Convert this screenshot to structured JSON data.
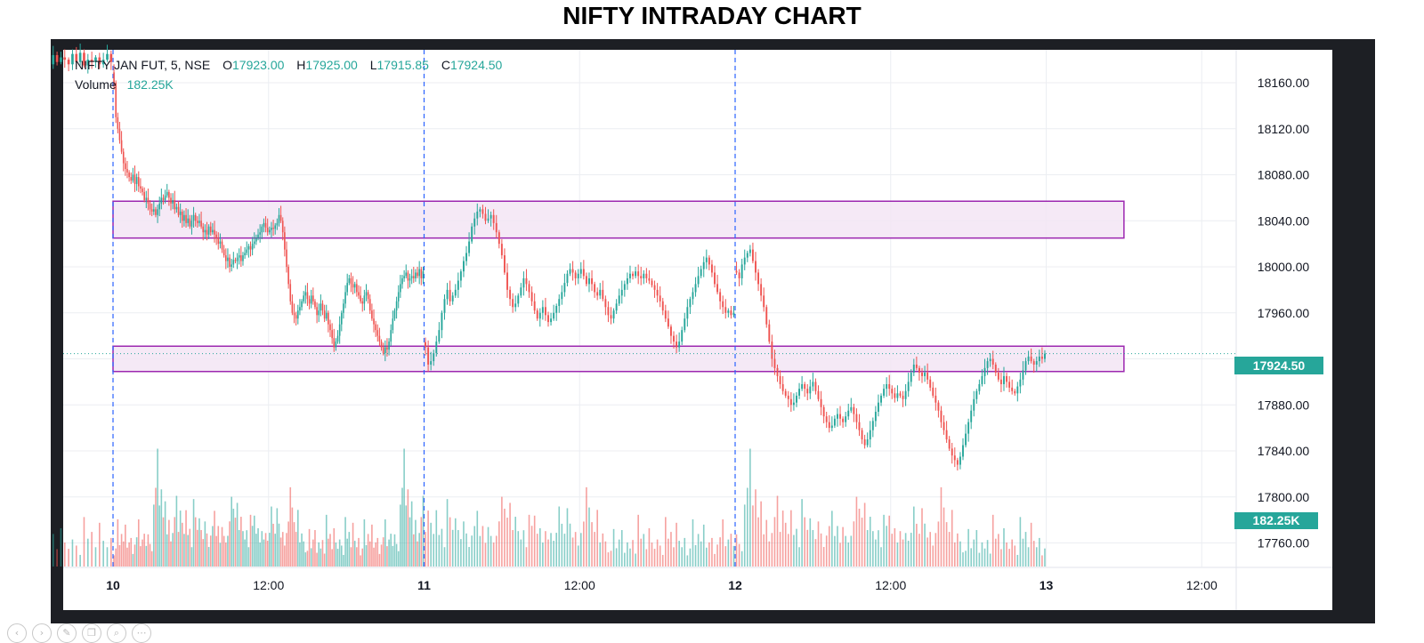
{
  "title": "NIFTY INTRADAY CHART",
  "legend": {
    "symbol": "NIFTY JAN FUT, 5, NSE",
    "o_label": "O",
    "o_value": "17923.00",
    "h_label": "H",
    "h_value": "17925.00",
    "l_label": "L",
    "l_value": "17915.85",
    "c_label": "C",
    "c_value": "17924.50",
    "volume_label": "Volume",
    "volume_value": "182.25K"
  },
  "price_badge": "17924.50",
  "volume_badge": "182.25K",
  "colors": {
    "up": "#26a69a",
    "down": "#ef5350",
    "zone_stroke": "#9c27b0",
    "zone_fill": "#f3e5f5",
    "separator": "#2962ff",
    "grid": "#eceef2",
    "frame": "#1d1f24",
    "price_line": "#26a69a"
  },
  "slide_controls": [
    {
      "name": "back-icon",
      "glyph": "‹"
    },
    {
      "name": "forward-icon",
      "glyph": "›"
    },
    {
      "name": "pen-icon",
      "glyph": "✎"
    },
    {
      "name": "copy-icon",
      "glyph": "❐"
    },
    {
      "name": "zoom-icon",
      "glyph": "⌕"
    },
    {
      "name": "more-icon",
      "glyph": "⋯"
    }
  ],
  "chart_data": {
    "type": "candlestick",
    "interval_minutes": 5,
    "y_range": [
      17745,
      18190
    ],
    "y_ticks": [
      "18160.00",
      "18120.00",
      "18080.00",
      "18040.00",
      "18000.00",
      "17960.00",
      "17920.00",
      "17880.00",
      "17840.00",
      "17800.00",
      "17760.00"
    ],
    "x_range_days": [
      9.65,
      13.5
    ],
    "x_ticks": [
      {
        "day": 10,
        "label": "10"
      },
      {
        "day": 10.5,
        "label": "12:00"
      },
      {
        "day": 11,
        "label": "11"
      },
      {
        "day": 11.5,
        "label": "12:00"
      },
      {
        "day": 12,
        "label": "12"
      },
      {
        "day": 12.5,
        "label": "12:00"
      },
      {
        "day": 13,
        "label": "13"
      },
      {
        "day": 13.5,
        "label": "12:00"
      }
    ],
    "day_separators": [
      10,
      11,
      12
    ],
    "zones": [
      {
        "from_day": 10,
        "to_day": 13.25,
        "low": 18025,
        "high": 18057
      },
      {
        "from_day": 10,
        "to_day": 13.25,
        "low": 17909,
        "high": 17931
      }
    ],
    "last_price": 17924.5,
    "last_volume": "182.25K",
    "days": [
      {
        "day": 9,
        "open_at": 0.64,
        "closes": [
          18170,
          18172,
          18168,
          18165,
          18162,
          18170,
          18160,
          18175,
          18168,
          18178,
          18172,
          18180,
          18176,
          18184,
          18178,
          18182,
          18180,
          18176,
          18185,
          18178,
          18186,
          18175,
          18180,
          18178,
          18182,
          18176,
          18180,
          18185,
          18178
        ]
      },
      {
        "day": 10,
        "closes": [
          18160,
          18130,
          18120,
          18110,
          18100,
          18090,
          18085,
          18082,
          18078,
          18075,
          18080,
          18072,
          18078,
          18070,
          18068,
          18065,
          18058,
          18060,
          18055,
          18050,
          18048,
          18050,
          18045,
          18050,
          18055,
          18060,
          18058,
          18062,
          18065,
          18060,
          18055,
          18058,
          18050,
          18052,
          18045,
          18048,
          18040,
          18045,
          18038,
          18042,
          18035,
          18040,
          18045,
          18040,
          18038,
          18040,
          18035,
          18030,
          18032,
          18028,
          18035,
          18030,
          18032,
          18028,
          18025,
          18020,
          18022,
          18015,
          18010,
          18005,
          18008,
          18000,
          18002,
          18006,
          18005,
          18008,
          18010,
          18005,
          18010,
          18012,
          18015,
          18018,
          18015,
          18020,
          18022,
          18025,
          18028,
          18030,
          18035,
          18038,
          18034,
          18030,
          18032,
          18034,
          18033,
          18036,
          18038,
          18045,
          18040,
          18030,
          18015,
          18000,
          17985,
          17970,
          17960,
          17958,
          17955,
          17962,
          17965,
          17970,
          17975,
          17978,
          17972,
          17968,
          17975,
          17970,
          17965,
          17958,
          17962,
          17968,
          17962,
          17955,
          17960,
          17950,
          17945,
          17938,
          17930,
          17935,
          17940,
          17950,
          17960,
          17968,
          17978,
          17986,
          17990,
          17985,
          17982,
          17985,
          17978,
          17975,
          17970,
          17968,
          17975,
          17978,
          17972,
          17962,
          17955,
          17950,
          17945,
          17940,
          17935,
          17930,
          17925,
          17930,
          17928,
          17935,
          17945,
          17955,
          17962,
          17970,
          17978,
          17985,
          17990,
          17992,
          17995,
          17988,
          17990,
          17992,
          17990,
          17995,
          17992,
          17998,
          17990,
          17996
        ]
      },
      {
        "day": 11,
        "closes": [
          17930,
          17915,
          17918,
          17925,
          17935,
          17945,
          17960,
          17972,
          17980,
          17970,
          17975,
          17980,
          17988,
          17996,
          18005,
          18012,
          18022,
          18035,
          18042,
          18048,
          18050,
          18046,
          18040,
          18042,
          18045,
          18038,
          18030,
          18020,
          18010,
          17995,
          17980,
          17972,
          17965,
          17968,
          17975,
          17982,
          17990,
          17985,
          17978,
          17970,
          17962,
          17955,
          17960,
          17965,
          17958,
          17952,
          17955,
          17960,
          17966,
          17972,
          17978,
          17986,
          17994,
          17998,
          17995,
          17990,
          17994,
          17998,
          17992,
          17985,
          17990,
          17985,
          17978,
          17975,
          17980,
          17972,
          17965,
          17958,
          17955,
          17962,
          17968,
          17975,
          17980,
          17985,
          17990,
          17994,
          17992,
          17996,
          17992,
          17990,
          17994,
          17990,
          17988,
          17984,
          17980,
          17975,
          17970,
          17962,
          17955,
          17948,
          17940,
          17935,
          17930,
          17935,
          17945,
          17955,
          17965,
          17972,
          17978,
          17985,
          17992,
          17998,
          18004,
          18008,
          18002,
          17995,
          17985,
          17978,
          17970,
          17965,
          17960,
          17962,
          17958,
          17960
        ]
      },
      {
        "day": 12,
        "closes": [
          17995,
          17990,
          18002,
          18008,
          18012,
          18015,
          18005,
          17995,
          17985,
          17975,
          17965,
          17950,
          17935,
          17920,
          17912,
          17905,
          17898,
          17892,
          17888,
          17885,
          17880,
          17882,
          17888,
          17894,
          17898,
          17894,
          17890,
          17896,
          17900,
          17892,
          17885,
          17878,
          17870,
          17865,
          17860,
          17862,
          17868,
          17872,
          17868,
          17865,
          17870,
          17875,
          17878,
          17872,
          17865,
          17858,
          17850,
          17845,
          17850,
          17858,
          17866,
          17874,
          17882,
          17888,
          17894,
          17898,
          17894,
          17890,
          17886,
          17890,
          17888,
          17885,
          17892,
          17900,
          17908,
          17915,
          17912,
          17908,
          17905,
          17908,
          17902,
          17895,
          17888,
          17882,
          17875,
          17865,
          17858,
          17850,
          17842,
          17836,
          17832,
          17828,
          17835,
          17845,
          17855,
          17865,
          17875,
          17885,
          17892,
          17898,
          17905,
          17912,
          17918,
          17920,
          17915,
          17908,
          17902,
          17898,
          17905,
          17900,
          17895,
          17892,
          17890,
          17896,
          17902,
          17910,
          17918,
          17922,
          17918,
          17915,
          17918,
          17922,
          17920,
          17924.5
        ]
      }
    ],
    "volume": {
      "scale_max": 110,
      "values": [
        22,
        14,
        35,
        18,
        28,
        40,
        16,
        30,
        24,
        38,
        20,
        46,
        26,
        32,
        18,
        42,
        28,
        22,
        36,
        30,
        18,
        44,
        26,
        34,
        20,
        48,
        30,
        24,
        38,
        16,
        28,
        42,
        20,
        32,
        26,
        46,
        22,
        30,
        38,
        18,
        34,
        26,
        44,
        20,
        28,
        36,
        24,
        40,
        30,
        22,
        96,
        70,
        110,
        60,
        80,
        54,
        76,
        40,
        62,
        36,
        52,
        44,
        66,
        34,
        58,
        48,
        38,
        70,
        42,
        54,
        30,
        60,
        46,
        36,
        50,
        40,
        32,
        56,
        44,
        28,
        48,
        36,
        52,
        30,
        42,
        26,
        46,
        38,
        32,
        44,
        70,
        62,
        54,
        48,
        66,
        40,
        58,
        44,
        36,
        52,
        30,
        46,
        38,
        50,
        34,
        42,
        28,
        44,
        36,
        48,
        40,
        30,
        56,
        42,
        34,
        64,
        50,
        36,
        46,
        30,
        52,
        40,
        74,
        58,
        46,
        38,
        66,
        30,
        44,
        36
      ]
    }
  }
}
